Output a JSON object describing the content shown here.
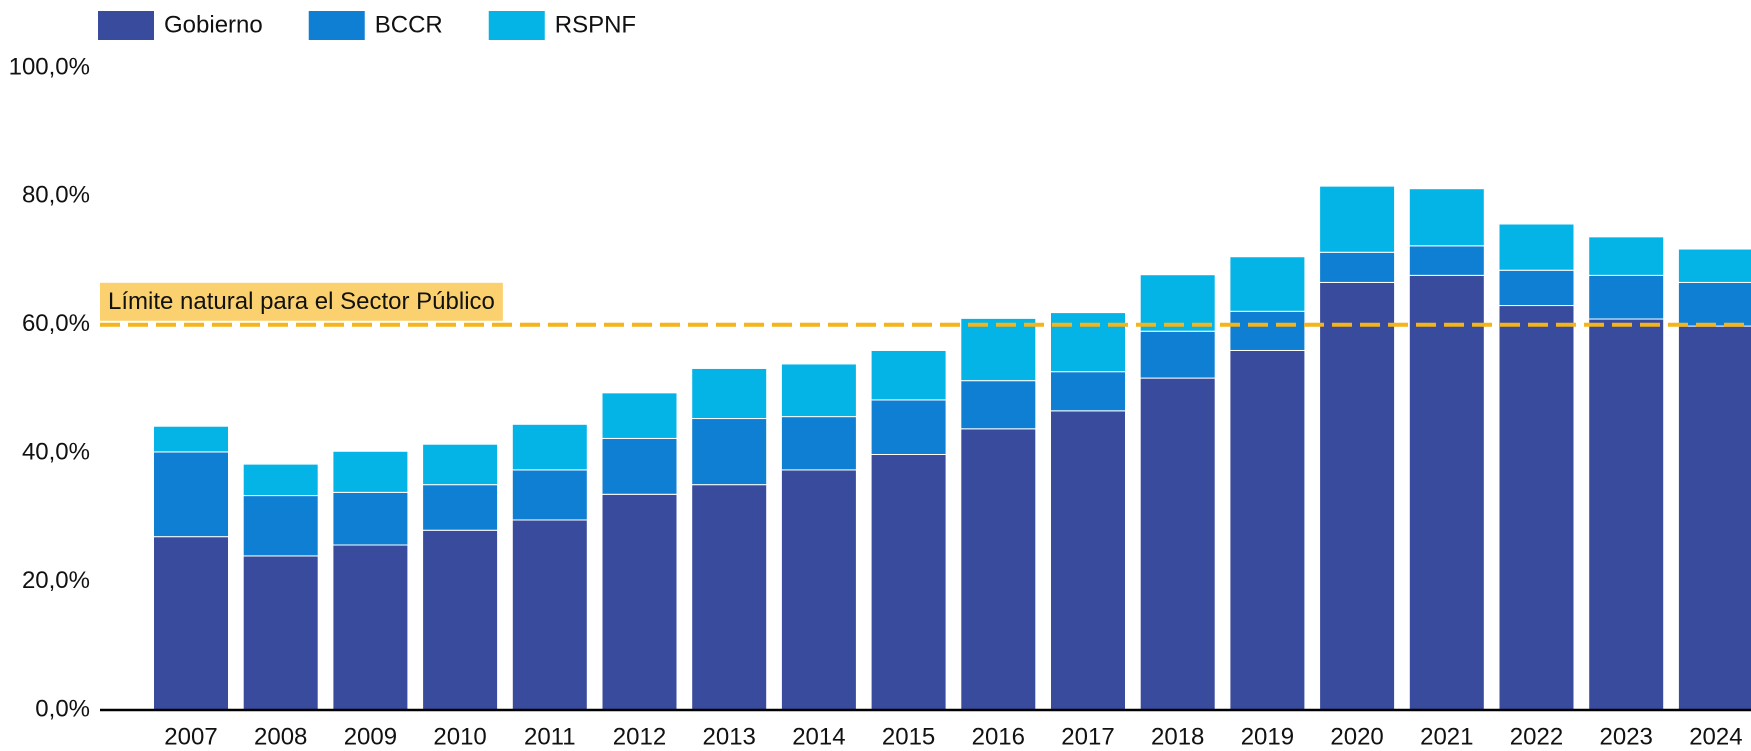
{
  "chart_data": {
    "type": "stacked_bar",
    "categories": [
      "2007",
      "2008",
      "2009",
      "2010",
      "2011",
      "2012",
      "2013",
      "2014",
      "2015",
      "2016",
      "2017",
      "2018",
      "2019",
      "2020",
      "2021",
      "2022",
      "2023",
      "2024"
    ],
    "series": [
      {
        "name": "Gobierno",
        "color": "#384b9c",
        "values": [
          27.0,
          24.0,
          25.7,
          28.0,
          29.6,
          33.6,
          35.1,
          37.4,
          39.8,
          43.8,
          46.6,
          51.7,
          56.0,
          66.6,
          67.7,
          63.0,
          60.9,
          59.8
        ]
      },
      {
        "name": "BCCR",
        "color": "#0f7fd4",
        "values": [
          13.2,
          9.4,
          8.2,
          7.1,
          7.8,
          8.7,
          10.3,
          8.3,
          8.5,
          7.5,
          6.1,
          7.3,
          6.1,
          4.7,
          4.6,
          5.5,
          6.8,
          6.8
        ]
      },
      {
        "name": "RSPNF",
        "color": "#05b4e6",
        "values": [
          4.0,
          4.9,
          6.4,
          6.3,
          7.1,
          7.1,
          7.8,
          8.2,
          7.7,
          9.7,
          9.2,
          8.8,
          8.5,
          10.3,
          8.9,
          7.2,
          6.0,
          5.2
        ]
      }
    ],
    "ylim": [
      0,
      100
    ],
    "yticks": [
      {
        "value": 0,
        "label": "0,0%"
      },
      {
        "value": 20,
        "label": "20,0%"
      },
      {
        "value": 40,
        "label": "40,0%"
      },
      {
        "value": 60,
        "label": "60,0%"
      },
      {
        "value": 80,
        "label": "80,0%"
      },
      {
        "value": 100,
        "label": "100,0%"
      }
    ],
    "reference_line": {
      "value": 60,
      "label": "Límite natural para el Sector Público",
      "color": "#f4b41a"
    },
    "grid": false
  }
}
